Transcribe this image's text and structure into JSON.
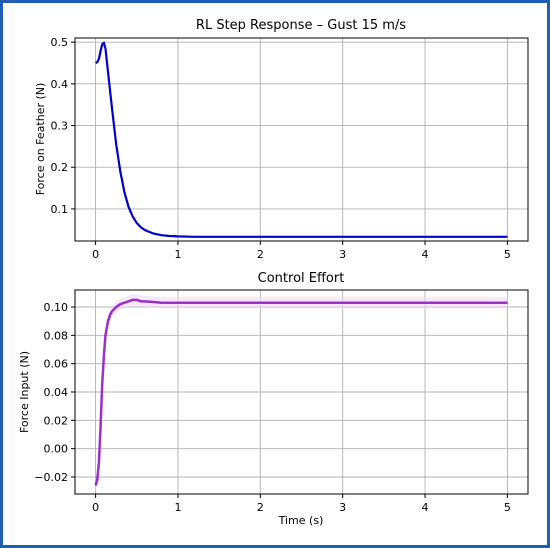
{
  "colors": {
    "frame": "#1f5fb0",
    "line1": "#0000cc",
    "line2": "#9a30c8",
    "band2": "#f3d6f5"
  },
  "chart_data": [
    {
      "type": "line",
      "title": "RL Step Response – Gust 15 m/s",
      "xlabel": "",
      "ylabel": "Force on Feather (N)",
      "xlim": [
        -0.25,
        5.25
      ],
      "ylim": [
        0.023,
        0.51
      ],
      "xticks": [
        0,
        1,
        2,
        3,
        4,
        5
      ],
      "yticks": [
        0.1,
        0.2,
        0.3,
        0.4,
        0.5
      ],
      "ytick_labels": [
        "0.1",
        "0.2",
        "0.3",
        "0.4",
        "0.5"
      ],
      "grid": true,
      "series": [
        {
          "x": [
            0,
            0.02,
            0.04,
            0.06,
            0.08,
            0.1,
            0.12,
            0.15,
            0.2,
            0.25,
            0.3,
            0.35,
            0.4,
            0.45,
            0.5,
            0.55,
            0.6,
            0.7,
            0.8,
            0.9,
            1.0,
            1.2,
            1.5,
            2.0,
            3.0,
            4.0,
            5.0
          ],
          "y": [
            0.45,
            0.452,
            0.46,
            0.478,
            0.495,
            0.498,
            0.485,
            0.43,
            0.34,
            0.255,
            0.19,
            0.14,
            0.105,
            0.082,
            0.066,
            0.056,
            0.049,
            0.041,
            0.037,
            0.035,
            0.034,
            0.033,
            0.033,
            0.033,
            0.033,
            0.033,
            0.033
          ]
        }
      ]
    },
    {
      "type": "line",
      "title": "Control Effort",
      "xlabel": "Time (s)",
      "ylabel": "Force Input (N)",
      "xlim": [
        -0.25,
        5.25
      ],
      "ylim": [
        -0.032,
        0.112
      ],
      "xticks": [
        0,
        1,
        2,
        3,
        4,
        5
      ],
      "yticks": [
        -0.02,
        0.0,
        0.02,
        0.04,
        0.06,
        0.08,
        0.1
      ],
      "ytick_labels": [
        "−0.02",
        "0.00",
        "0.02",
        "0.04",
        "0.06",
        "0.08",
        "0.10"
      ],
      "grid": true,
      "series": [
        {
          "x": [
            0,
            0.02,
            0.04,
            0.06,
            0.08,
            0.1,
            0.12,
            0.15,
            0.18,
            0.2,
            0.25,
            0.3,
            0.35,
            0.4,
            0.45,
            0.5,
            0.55,
            0.6,
            0.7,
            0.8,
            1.0,
            1.5,
            2.0,
            3.0,
            4.0,
            5.0
          ],
          "y": [
            -0.026,
            -0.022,
            -0.01,
            0.015,
            0.045,
            0.065,
            0.08,
            0.09,
            0.095,
            0.097,
            0.1,
            0.102,
            0.103,
            0.104,
            0.105,
            0.105,
            0.104,
            0.104,
            0.1035,
            0.103,
            0.103,
            0.103,
            0.103,
            0.103,
            0.103,
            0.103
          ]
        }
      ]
    }
  ]
}
